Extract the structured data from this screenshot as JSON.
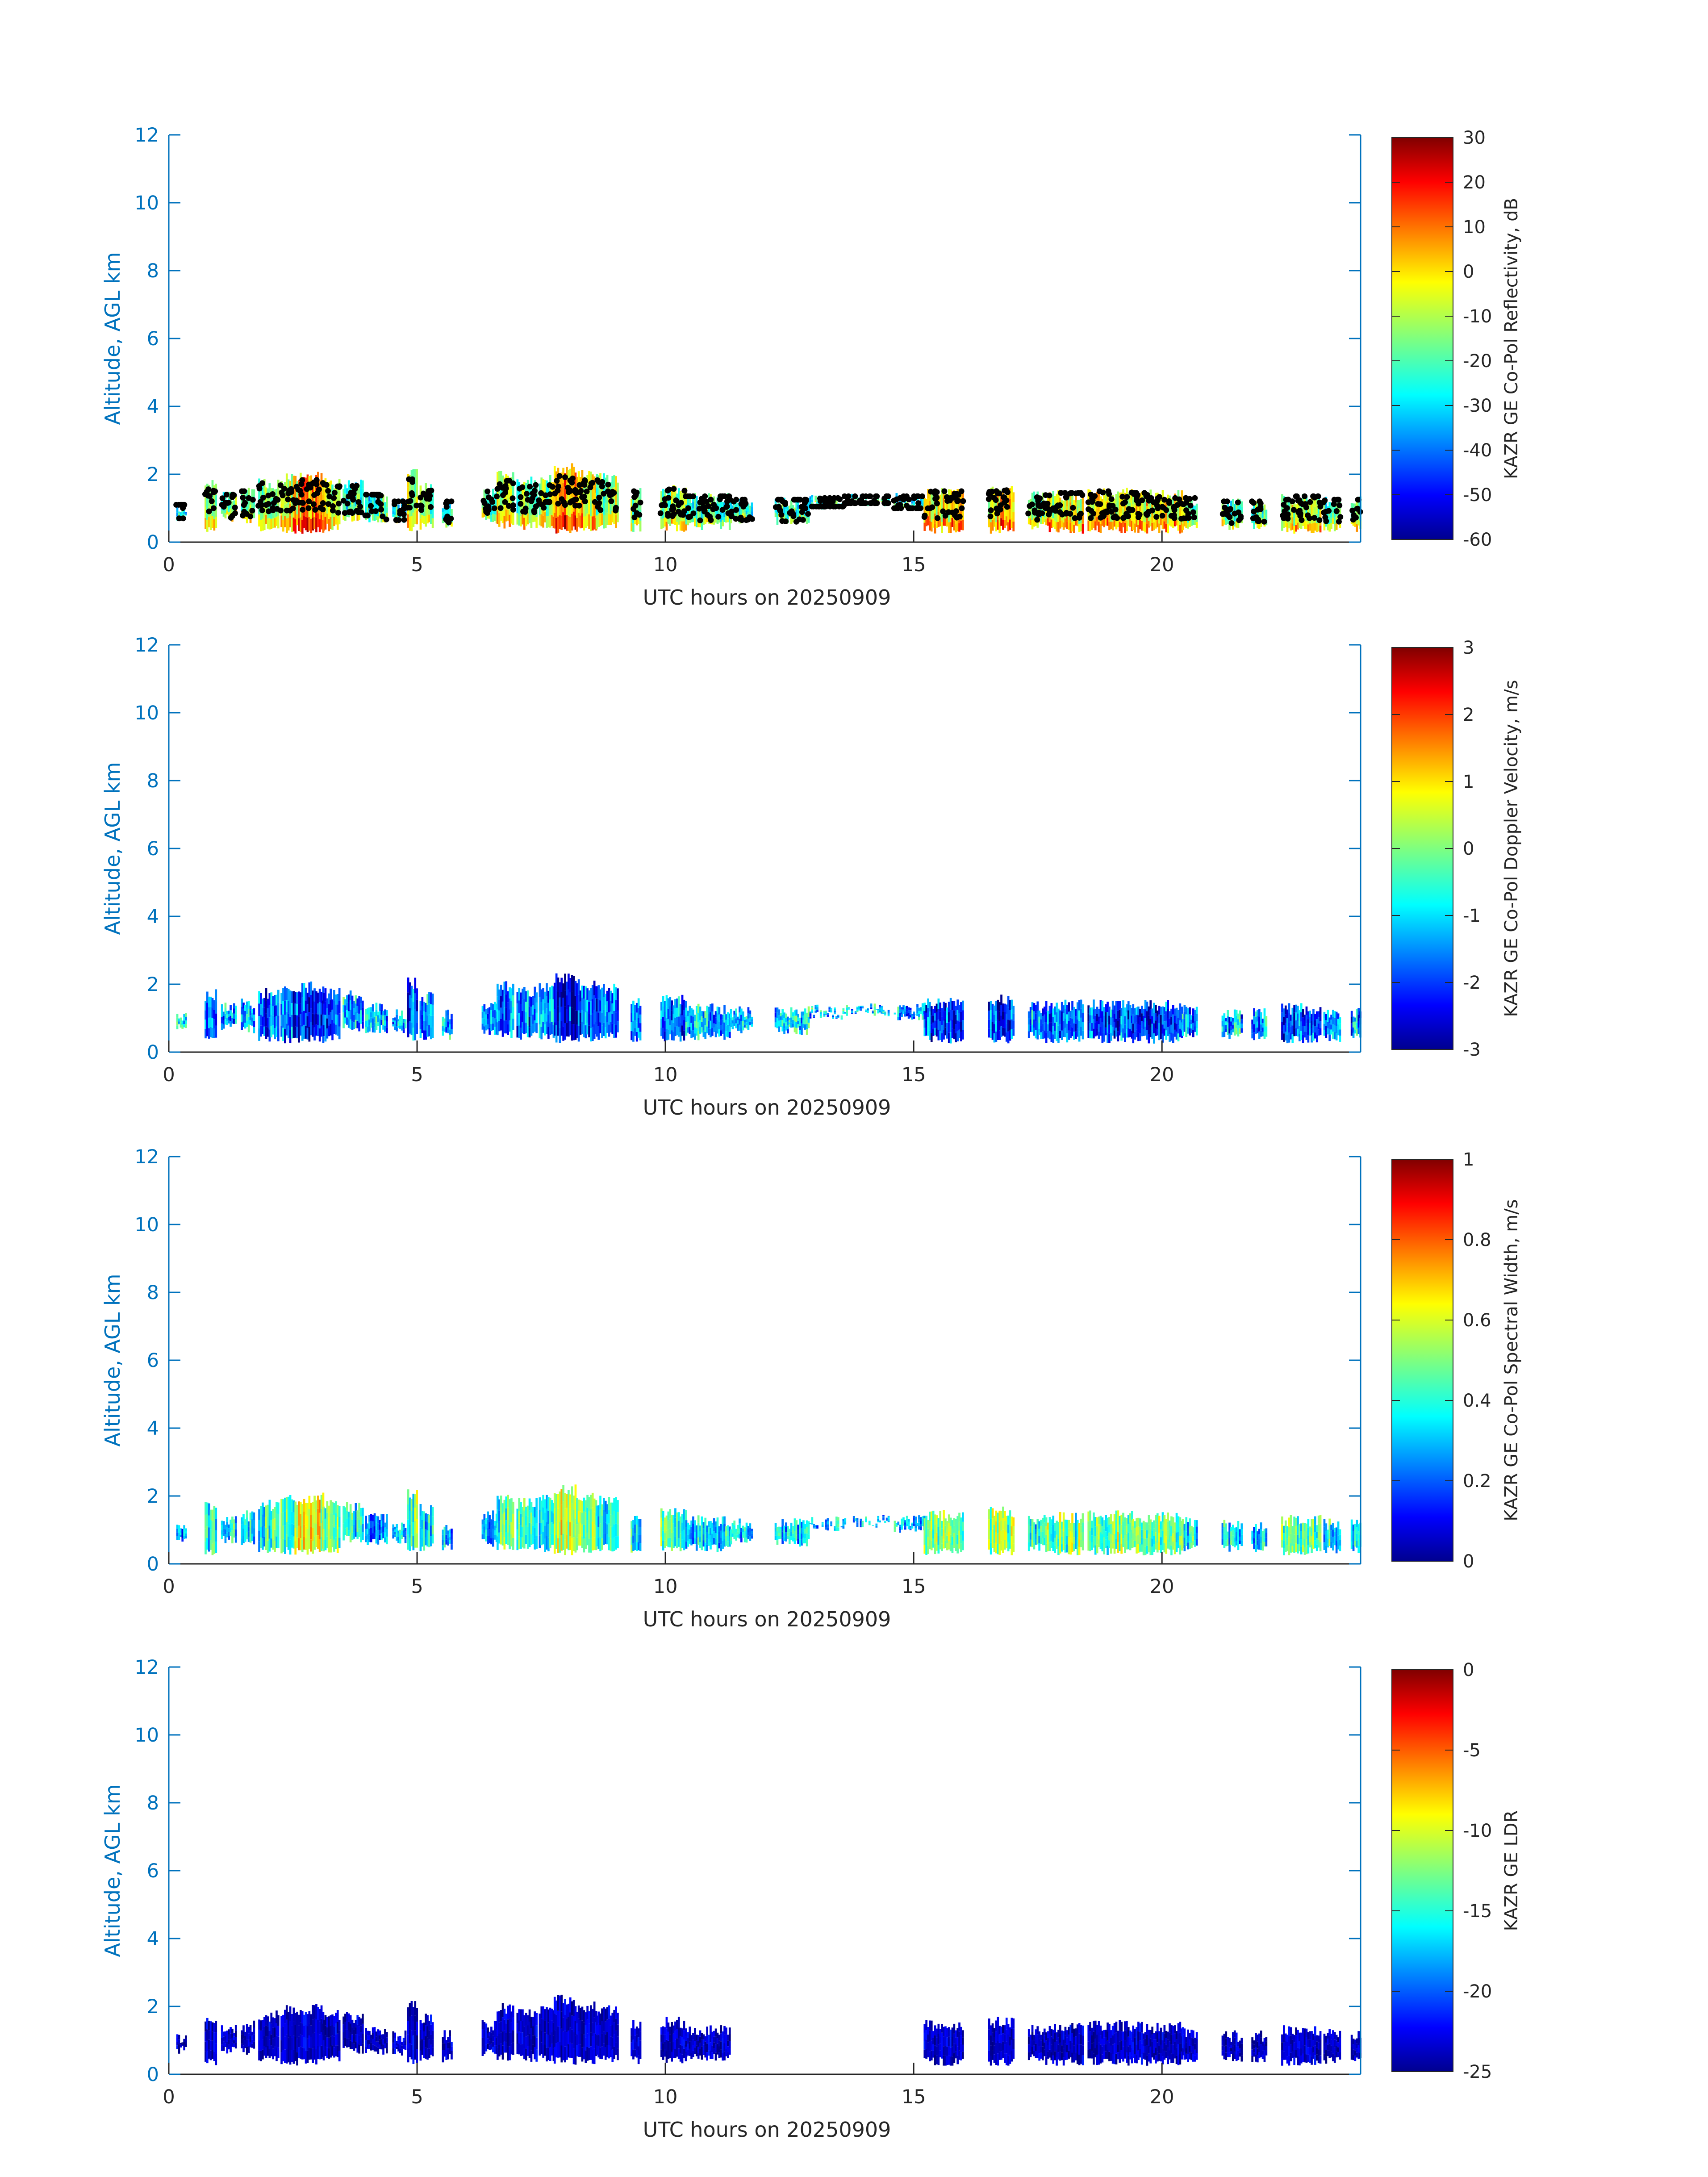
{
  "chart_data": [
    {
      "type": "heatmap",
      "xlabel": "UTC hours on 20250909",
      "ylabel": "Altitude, AGL km",
      "xlim": [
        0,
        24
      ],
      "ylim": [
        0,
        12
      ],
      "xticks": [
        "0",
        "5",
        "10",
        "15",
        "20"
      ],
      "yticks": [
        "0",
        "2",
        "4",
        "6",
        "8",
        "10",
        "12"
      ],
      "colorbar": {
        "label": "KAZR GE Co-Pol Reflectivity, dB",
        "range": [
          -60,
          30
        ],
        "ticks": [
          "30",
          "20",
          "10",
          "0",
          "-10",
          "-20",
          "-30",
          "-40",
          "-50",
          "-60"
        ],
        "colormap": "jet"
      },
      "overlay": "cloud base points (black dots) at approximately 0.5–1.7 km",
      "field_range_shown": "approximately -35 to 20 dB"
    },
    {
      "type": "heatmap",
      "xlabel": "UTC hours on 20250909",
      "ylabel": "Altitude, AGL km",
      "xlim": [
        0,
        24
      ],
      "ylim": [
        0,
        12
      ],
      "xticks": [
        "0",
        "5",
        "10",
        "15",
        "20"
      ],
      "yticks": [
        "0",
        "2",
        "4",
        "6",
        "8",
        "10",
        "12"
      ],
      "colorbar": {
        "label": "KAZR GE Co-Pol Doppler Velocity, m/s",
        "range": [
          -3,
          3
        ],
        "ticks": [
          "3",
          "2",
          "1",
          "0",
          "-1",
          "-2",
          "-3"
        ],
        "colormap": "jet"
      },
      "field_range_shown": "approximately -3 to 0.5 m/s"
    },
    {
      "type": "heatmap",
      "xlabel": "UTC hours on 20250909",
      "ylabel": "Altitude, AGL km",
      "xlim": [
        0,
        24
      ],
      "ylim": [
        0,
        12
      ],
      "xticks": [
        "0",
        "5",
        "10",
        "15",
        "20"
      ],
      "yticks": [
        "0",
        "2",
        "4",
        "6",
        "8",
        "10",
        "12"
      ],
      "colorbar": {
        "label": "KAZR GE Co-Pol Spectral Width, m/s",
        "range": [
          0,
          1
        ],
        "ticks": [
          "1",
          "0.8",
          "0.6",
          "0.4",
          "0.2",
          "0"
        ],
        "colormap": "jet"
      },
      "field_range_shown": "approximately 0.1 to 0.9 m/s"
    },
    {
      "type": "heatmap",
      "xlabel": "UTC hours on 20250909",
      "ylabel": "Altitude, AGL km",
      "xlim": [
        0,
        24
      ],
      "ylim": [
        0,
        12
      ],
      "xticks": [
        "0",
        "5",
        "10",
        "15",
        "20"
      ],
      "yticks": [
        "0",
        "2",
        "4",
        "6",
        "8",
        "10",
        "12"
      ],
      "colorbar": {
        "label": "KAZR GE LDR",
        "range": [
          -25,
          0
        ],
        "ticks": [
          "0",
          "-5",
          "-10",
          "-15",
          "-20",
          "-25"
        ],
        "colormap": "jet"
      },
      "field_range_shown": "approximately -25 to -22"
    }
  ],
  "cloud_profile": {
    "note": "cloud echo columns: [start_hour, end_hour, top_km, base_km, intensity 0-1]",
    "columns": [
      [
        0.15,
        0.35,
        1.2,
        0.6,
        0.3
      ],
      [
        0.72,
        0.95,
        1.85,
        0.25,
        0.55
      ],
      [
        1.05,
        1.35,
        1.5,
        0.6,
        0.45
      ],
      [
        1.45,
        1.7,
        1.6,
        0.55,
        0.45
      ],
      [
        1.8,
        2.2,
        1.9,
        0.3,
        0.6
      ],
      [
        2.25,
        2.6,
        2.05,
        0.25,
        0.75
      ],
      [
        2.6,
        3.1,
        2.1,
        0.25,
        0.95
      ],
      [
        3.1,
        3.45,
        1.9,
        0.3,
        0.7
      ],
      [
        3.5,
        3.9,
        1.85,
        0.6,
        0.45
      ],
      [
        3.95,
        4.4,
        1.5,
        0.55,
        0.35
      ],
      [
        4.5,
        4.75,
        1.3,
        0.55,
        0.35
      ],
      [
        4.8,
        5.0,
        2.2,
        0.3,
        0.65
      ],
      [
        5.05,
        5.3,
        1.8,
        0.35,
        0.5
      ],
      [
        5.5,
        5.7,
        1.3,
        0.35,
        0.4
      ],
      [
        6.3,
        6.6,
        1.6,
        0.5,
        0.4
      ],
      [
        6.6,
        6.95,
        2.1,
        0.4,
        0.6
      ],
      [
        7.0,
        7.4,
        1.95,
        0.35,
        0.55
      ],
      [
        7.45,
        7.75,
        2.05,
        0.35,
        0.6
      ],
      [
        7.75,
        8.2,
        2.35,
        0.25,
        0.95
      ],
      [
        8.2,
        8.6,
        2.15,
        0.3,
        0.75
      ],
      [
        8.6,
        9.05,
        2.05,
        0.35,
        0.6
      ],
      [
        9.3,
        9.5,
        1.6,
        0.3,
        0.5
      ],
      [
        9.9,
        10.4,
        1.7,
        0.3,
        0.6
      ],
      [
        10.4,
        11.3,
        1.45,
        0.35,
        0.45
      ],
      [
        11.3,
        11.75,
        1.35,
        0.55,
        0.4
      ],
      [
        12.2,
        12.9,
        1.35,
        0.5,
        0.4
      ],
      [
        12.9,
        13.6,
        1.4,
        0.95,
        0.35
      ],
      [
        13.6,
        14.5,
        1.45,
        1.05,
        0.35
      ],
      [
        14.6,
        15.2,
        1.45,
        0.9,
        0.4
      ],
      [
        15.2,
        16.0,
        1.6,
        0.25,
        0.75
      ],
      [
        16.5,
        17.0,
        1.7,
        0.25,
        0.8
      ],
      [
        17.3,
        17.65,
        1.5,
        0.35,
        0.55
      ],
      [
        17.65,
        18.4,
        1.55,
        0.25,
        0.7
      ],
      [
        18.5,
        19.4,
        1.6,
        0.25,
        0.75
      ],
      [
        19.4,
        20.4,
        1.55,
        0.25,
        0.75
      ],
      [
        20.4,
        20.7,
        1.4,
        0.35,
        0.55
      ],
      [
        21.2,
        21.6,
        1.3,
        0.35,
        0.45
      ],
      [
        21.8,
        22.1,
        1.3,
        0.35,
        0.45
      ],
      [
        22.4,
        23.2,
        1.45,
        0.25,
        0.65
      ],
      [
        23.25,
        23.6,
        1.35,
        0.3,
        0.5
      ],
      [
        23.8,
        24.0,
        1.35,
        0.3,
        0.5
      ]
    ]
  }
}
